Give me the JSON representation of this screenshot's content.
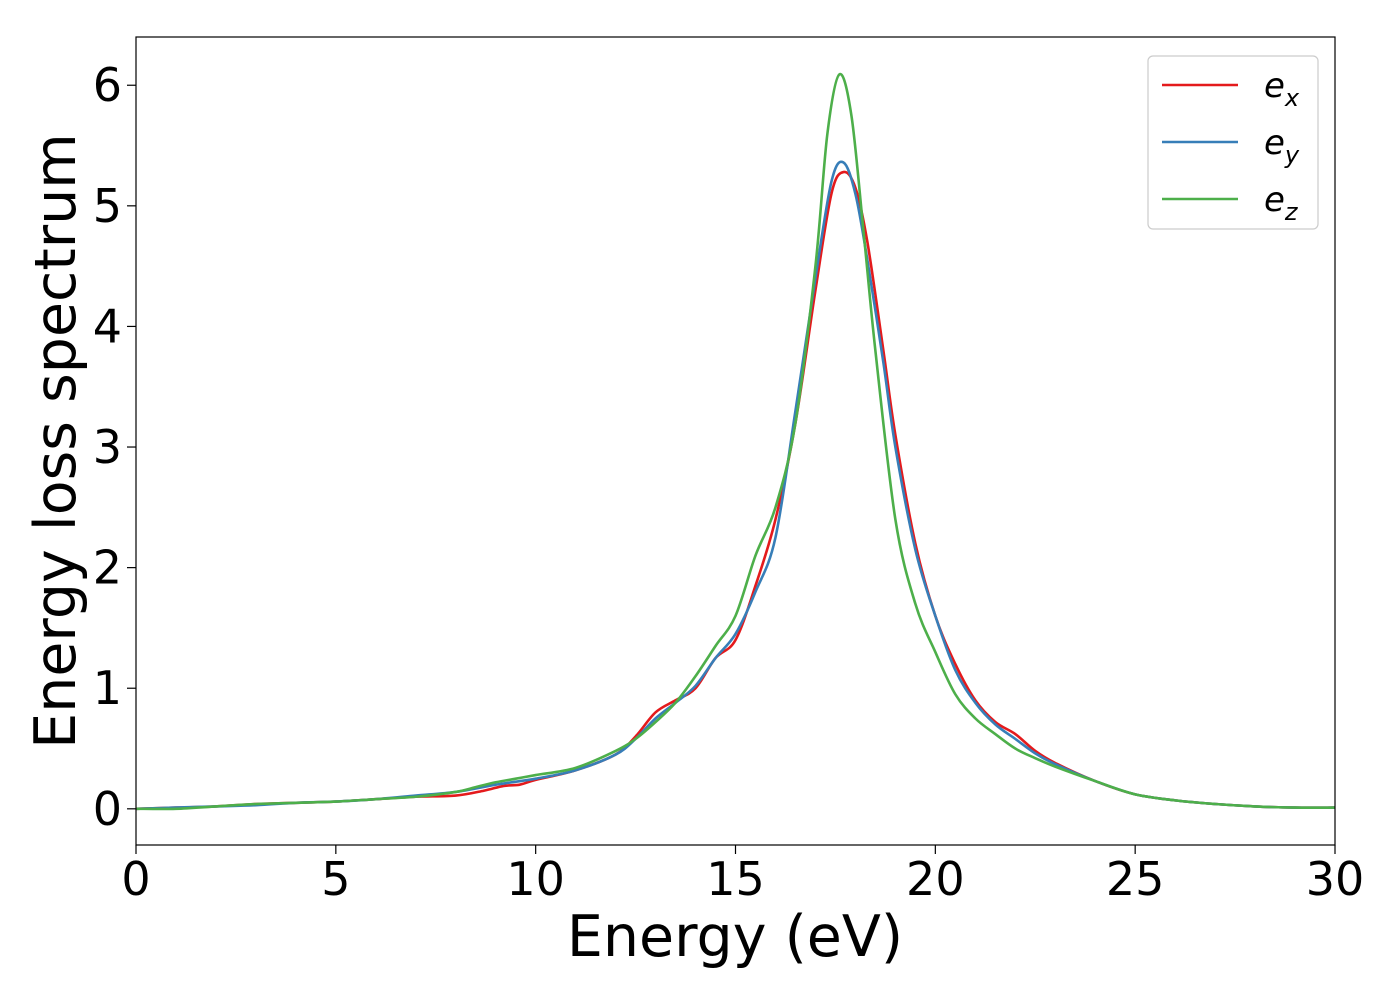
{
  "chart_data": {
    "type": "line",
    "title": "",
    "xlabel": "Energy (eV)",
    "ylabel": "Energy loss spectrum",
    "xlim": [
      0,
      30
    ],
    "ylim": [
      -0.3,
      6.4
    ],
    "xticks": [
      0,
      5,
      10,
      15,
      20,
      25,
      30
    ],
    "yticks": [
      0,
      1,
      2,
      3,
      4,
      5,
      6
    ],
    "grid": false,
    "legend_position": "top-right",
    "series": [
      {
        "name": "e_x",
        "label_base": "e",
        "label_sub": "x",
        "color": "#e41a1c",
        "x": [
          0,
          1,
          2,
          3,
          4,
          5,
          6,
          7,
          8,
          8.7,
          9.2,
          9.6,
          10,
          11,
          12,
          12.5,
          13,
          13.5,
          14,
          14.5,
          15,
          15.5,
          16,
          16.5,
          17,
          17.4,
          17.7,
          18,
          18.3,
          18.7,
          19,
          19.5,
          20,
          20.5,
          21,
          21.5,
          22,
          22.5,
          23,
          24,
          25,
          26,
          27,
          28,
          29,
          30
        ],
        "y": [
          0,
          0.01,
          0.02,
          0.04,
          0.05,
          0.06,
          0.08,
          0.1,
          0.11,
          0.15,
          0.19,
          0.2,
          0.24,
          0.32,
          0.45,
          0.6,
          0.8,
          0.9,
          1.0,
          1.25,
          1.4,
          1.85,
          2.4,
          3.2,
          4.3,
          5.1,
          5.28,
          5.15,
          4.7,
          3.8,
          3.1,
          2.2,
          1.6,
          1.2,
          0.9,
          0.72,
          0.62,
          0.48,
          0.38,
          0.23,
          0.12,
          0.07,
          0.04,
          0.02,
          0.01,
          0.01
        ]
      },
      {
        "name": "e_y",
        "label_base": "e",
        "label_sub": "y",
        "color": "#377eb8",
        "x": [
          0,
          1,
          2,
          3,
          4,
          5,
          6,
          7,
          8,
          9,
          10,
          11,
          12,
          12.5,
          13,
          13.5,
          14,
          14.5,
          15,
          15.5,
          16,
          16.5,
          17,
          17.4,
          17.7,
          18,
          18.3,
          18.7,
          19,
          19.5,
          20,
          20.5,
          21,
          21.5,
          22,
          22.5,
          23,
          24,
          25,
          26,
          27,
          28,
          29,
          30
        ],
        "y": [
          0,
          0.01,
          0.02,
          0.03,
          0.05,
          0.06,
          0.08,
          0.11,
          0.14,
          0.2,
          0.25,
          0.32,
          0.45,
          0.58,
          0.75,
          0.88,
          1.02,
          1.25,
          1.45,
          1.8,
          2.25,
          3.3,
          4.4,
          5.2,
          5.36,
          5.1,
          4.55,
          3.7,
          3.0,
          2.15,
          1.6,
          1.15,
          0.88,
          0.7,
          0.58,
          0.46,
          0.37,
          0.23,
          0.12,
          0.07,
          0.04,
          0.02,
          0.01,
          0.01
        ]
      },
      {
        "name": "e_z",
        "label_base": "e",
        "label_sub": "z",
        "color": "#4daf4a",
        "x": [
          0,
          1,
          2,
          3,
          4,
          5,
          6,
          7,
          8,
          8.5,
          9,
          9.5,
          10,
          11,
          12,
          12.5,
          13,
          13.5,
          14,
          14.5,
          15,
          15.5,
          16,
          16.5,
          17,
          17.3,
          17.6,
          17.9,
          18.2,
          18.5,
          19,
          19.5,
          20,
          20.5,
          21,
          21.5,
          22,
          22.5,
          23,
          24,
          25,
          26,
          27,
          28,
          29,
          30
        ],
        "y": [
          0,
          0.0,
          0.02,
          0.04,
          0.05,
          0.06,
          0.08,
          0.1,
          0.14,
          0.18,
          0.22,
          0.25,
          0.28,
          0.34,
          0.48,
          0.58,
          0.72,
          0.88,
          1.1,
          1.35,
          1.6,
          2.1,
          2.5,
          3.2,
          4.5,
          5.6,
          6.09,
          5.75,
          4.8,
          3.8,
          2.4,
          1.7,
          1.3,
          0.95,
          0.75,
          0.62,
          0.5,
          0.42,
          0.35,
          0.23,
          0.12,
          0.07,
          0.04,
          0.02,
          0.01,
          0.01
        ]
      }
    ]
  }
}
